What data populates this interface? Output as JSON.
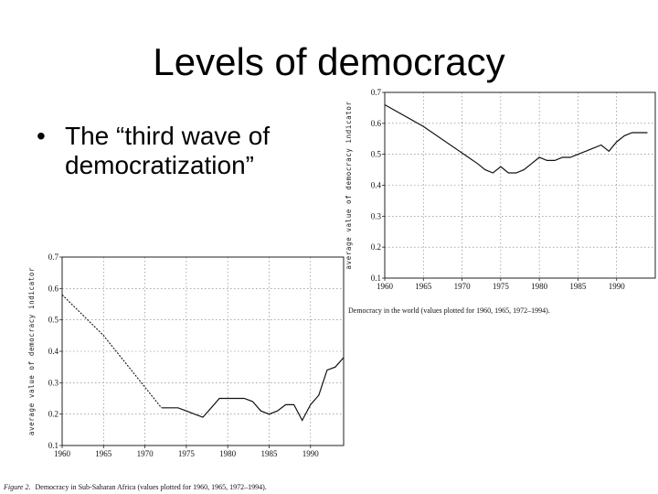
{
  "slide": {
    "title": "Levels of democracy",
    "bullet_symbol": "•",
    "bullet_text": "The “third wave of democratization”"
  },
  "chart_data": [
    {
      "type": "line",
      "title": "",
      "caption": "Democracy in the world (values plotted for 1960, 1965, 1972–1994).",
      "xlabel": "",
      "ylabel": "average value of democracy indicator",
      "xlim": [
        1960,
        1995
      ],
      "ylim": [
        0.1,
        0.7
      ],
      "xticks": [
        1960,
        1965,
        1970,
        1975,
        1980,
        1985,
        1990
      ],
      "yticks": [
        "0.1",
        "0.2",
        "0.3",
        "0.4",
        "0.5",
        "0.6",
        "0.7"
      ],
      "grid": true,
      "series": [
        {
          "x": [
            1960,
            1965,
            1972,
            1973,
            1974,
            1975,
            1976,
            1977,
            1978,
            1979,
            1980,
            1981,
            1982,
            1983,
            1984,
            1985,
            1986,
            1987,
            1988,
            1989,
            1990,
            1991,
            1992,
            1993,
            1994
          ],
          "y": [
            0.66,
            0.59,
            0.47,
            0.45,
            0.44,
            0.46,
            0.44,
            0.44,
            0.45,
            0.47,
            0.49,
            0.48,
            0.48,
            0.49,
            0.49,
            0.5,
            0.51,
            0.52,
            0.53,
            0.51,
            0.54,
            0.56,
            0.57,
            0.57,
            0.57
          ]
        }
      ]
    },
    {
      "type": "line",
      "title": "",
      "caption_label": "Figure 2.",
      "caption": "Democracy in Sub-Saharan Africa (values plotted for 1960, 1965, 1972–1994).",
      "xlabel": "",
      "ylabel": "average value of democracy indicator",
      "xlim": [
        1960,
        1994
      ],
      "ylim": [
        0.1,
        0.7
      ],
      "xticks": [
        1960,
        1965,
        1970,
        1975,
        1980,
        1985,
        1990
      ],
      "yticks": [
        "0.1",
        "0.2",
        "0.3",
        "0.4",
        "0.5",
        "0.6",
        "0.7"
      ],
      "grid": true,
      "series": [
        {
          "x": [
            1960,
            1965,
            1972,
            1973,
            1974,
            1975,
            1976,
            1977,
            1978,
            1979,
            1980,
            1981,
            1982,
            1983,
            1984,
            1985,
            1986,
            1987,
            1988,
            1989,
            1990,
            1991,
            1992,
            1993,
            1994
          ],
          "y": [
            0.58,
            0.45,
            0.22,
            0.22,
            0.22,
            0.21,
            0.2,
            0.19,
            0.22,
            0.25,
            0.25,
            0.25,
            0.25,
            0.24,
            0.21,
            0.2,
            0.21,
            0.23,
            0.23,
            0.18,
            0.23,
            0.26,
            0.34,
            0.35,
            0.38
          ]
        }
      ]
    }
  ]
}
